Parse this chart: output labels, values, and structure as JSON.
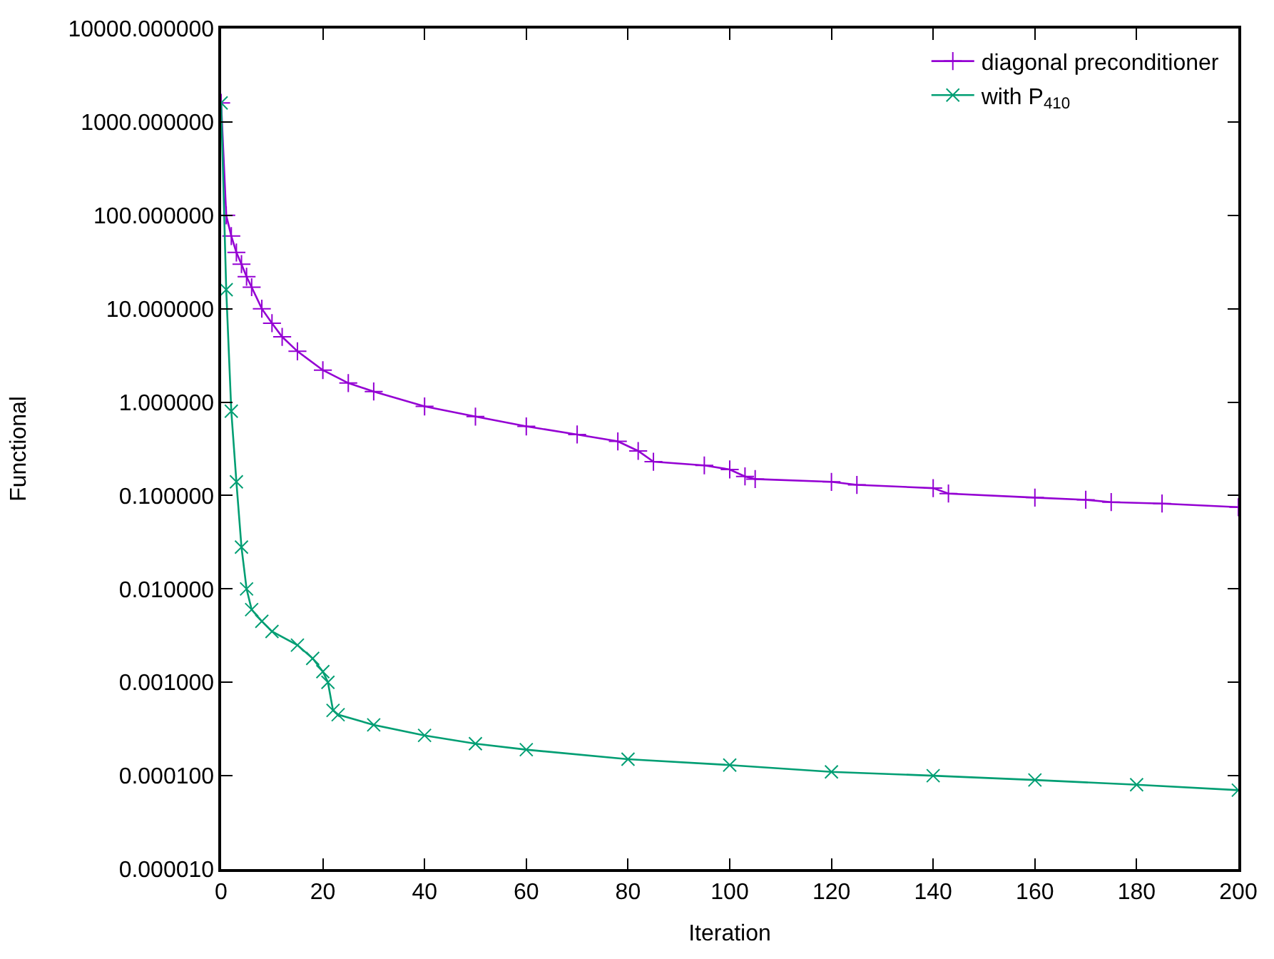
{
  "chart_data": {
    "type": "line",
    "xlabel": "Iteration",
    "ylabel": "Functional",
    "log": "y",
    "grid": false,
    "legend": "top right",
    "xlim": [
      0,
      200
    ],
    "xticks": [
      0,
      20,
      40,
      60,
      80,
      100,
      120,
      140,
      160,
      180,
      200
    ],
    "ylim": [
      1e-05,
      10000
    ],
    "yticks": [
      {
        "value": 1e-05,
        "label": "0.000010"
      },
      {
        "value": 0.0001,
        "label": "0.000100"
      },
      {
        "value": 0.001,
        "label": "0.001000"
      },
      {
        "value": 0.01,
        "label": "0.010000"
      },
      {
        "value": 0.1,
        "label": "0.100000"
      },
      {
        "value": 1,
        "label": "1.000000"
      },
      {
        "value": 10,
        "label": "10.000000"
      },
      {
        "value": 100,
        "label": "100.000000"
      },
      {
        "value": 1000,
        "label": "1000.000000"
      },
      {
        "value": 10000,
        "label": "10000.000000"
      }
    ],
    "series": [
      {
        "name": "diagonal preconditioner",
        "color": "#9400d3",
        "marker": "cross",
        "x": [
          0,
          1,
          2,
          3,
          4,
          5,
          6,
          8,
          10,
          12,
          15,
          20,
          25,
          30,
          40,
          50,
          60,
          70,
          78,
          82,
          85,
          95,
          100,
          103,
          105,
          120,
          125,
          140,
          143,
          160,
          170,
          175,
          185,
          200
        ],
        "values": [
          1600,
          100,
          60,
          40,
          30,
          22,
          17,
          10,
          7,
          5,
          3.5,
          2.2,
          1.6,
          1.3,
          0.9,
          0.7,
          0.55,
          0.45,
          0.38,
          0.3,
          0.23,
          0.21,
          0.19,
          0.16,
          0.15,
          0.14,
          0.13,
          0.12,
          0.105,
          0.095,
          0.09,
          0.085,
          0.082,
          0.075
        ]
      },
      {
        "name": "with P$_{410}$",
        "color": "#009e73",
        "marker": "cross",
        "x": [
          0,
          1,
          2,
          3,
          4,
          5,
          6,
          8,
          10,
          15,
          18,
          20,
          21,
          22,
          23,
          30,
          40,
          50,
          60,
          80,
          100,
          120,
          140,
          160,
          180,
          200
        ],
        "values": [
          1600,
          16,
          0.8,
          0.14,
          0.028,
          0.01,
          0.006,
          0.0045,
          0.0035,
          0.0025,
          0.0018,
          0.0013,
          0.001,
          0.0005,
          0.00045,
          0.00035,
          0.00027,
          0.00022,
          0.00019,
          0.00015,
          0.00013,
          0.00011,
          0.0001,
          9e-05,
          8e-05,
          7e-05
        ]
      }
    ]
  }
}
